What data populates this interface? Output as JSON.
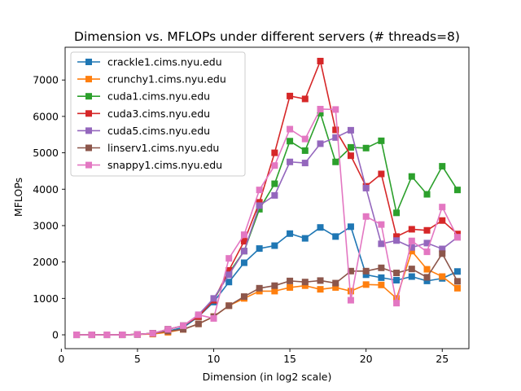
{
  "chart_data": {
    "type": "line",
    "title": "Dimension vs. MFLOPs under different servers (# threads=8)",
    "xlabel": "Dimension (in log2 scale)",
    "ylabel": "MFLOPs",
    "xlim": [
      0.25,
      26.75
    ],
    "ylim": [
      -380,
      7900
    ],
    "xticks": [
      0,
      5,
      10,
      15,
      20,
      25
    ],
    "yticks": [
      0,
      1000,
      2000,
      3000,
      4000,
      5000,
      6000,
      7000
    ],
    "grid": false,
    "legend_position": "upper-left",
    "x": [
      1,
      2,
      3,
      4,
      5,
      6,
      7,
      8,
      9,
      10,
      11,
      12,
      13,
      14,
      15,
      16,
      17,
      18,
      19,
      20,
      21,
      22,
      23,
      24,
      25,
      26
    ],
    "series": [
      {
        "name": "crackle1.cims.nyu.edu",
        "color": "#1f77b4",
        "values": [
          0,
          0,
          0,
          0,
          10,
          40,
          100,
          200,
          500,
          900,
          1450,
          1980,
          2370,
          2450,
          2780,
          2650,
          2950,
          2700,
          2970,
          1650,
          1570,
          1500,
          1600,
          1480,
          1550,
          1740
        ]
      },
      {
        "name": "crunchy1.cims.nyu.edu",
        "color": "#ff7f0e",
        "values": [
          0,
          0,
          0,
          0,
          10,
          20,
          70,
          150,
          300,
          500,
          800,
          1000,
          1200,
          1200,
          1300,
          1350,
          1250,
          1300,
          1200,
          1380,
          1370,
          1000,
          2300,
          1800,
          1600,
          1280
        ]
      },
      {
        "name": "cuda1.cims.nyu.edu",
        "color": "#2ca02c",
        "values": [
          0,
          0,
          0,
          0,
          10,
          40,
          150,
          250,
          500,
          950,
          1700,
          2300,
          3450,
          4150,
          5320,
          5060,
          6090,
          4750,
          5150,
          5130,
          5330,
          3350,
          4350,
          3860,
          4630,
          3980
        ]
      },
      {
        "name": "cuda3.cims.nyu.edu",
        "color": "#d62728",
        "values": [
          0,
          0,
          0,
          0,
          10,
          40,
          150,
          250,
          500,
          950,
          1770,
          2570,
          3640,
          5000,
          6560,
          6480,
          7520,
          5630,
          4920,
          4080,
          4420,
          2700,
          2900,
          2870,
          3140,
          2770
        ]
      },
      {
        "name": "cuda5.cims.nyu.edu",
        "color": "#9467bd",
        "values": [
          0,
          0,
          0,
          0,
          10,
          40,
          150,
          250,
          550,
          1000,
          1650,
          2300,
          3550,
          3830,
          4750,
          4720,
          5250,
          5420,
          5620,
          4030,
          2500,
          2590,
          2400,
          2520,
          2360,
          2680
        ]
      },
      {
        "name": "linserv1.cims.nyu.edu",
        "color": "#8c564b",
        "values": [
          0,
          0,
          0,
          0,
          10,
          40,
          100,
          150,
          300,
          500,
          800,
          1050,
          1280,
          1350,
          1480,
          1450,
          1490,
          1420,
          1750,
          1750,
          1840,
          1700,
          1810,
          1580,
          2230,
          1470
        ]
      },
      {
        "name": "snappy1.cims.nyu.edu",
        "color": "#e377c2",
        "values": [
          0,
          0,
          0,
          0,
          10,
          40,
          150,
          250,
          550,
          450,
          2100,
          2750,
          3980,
          4650,
          5650,
          5380,
          6200,
          6190,
          950,
          3250,
          3030,
          870,
          2580,
          2280,
          3510,
          2680
        ]
      }
    ]
  }
}
